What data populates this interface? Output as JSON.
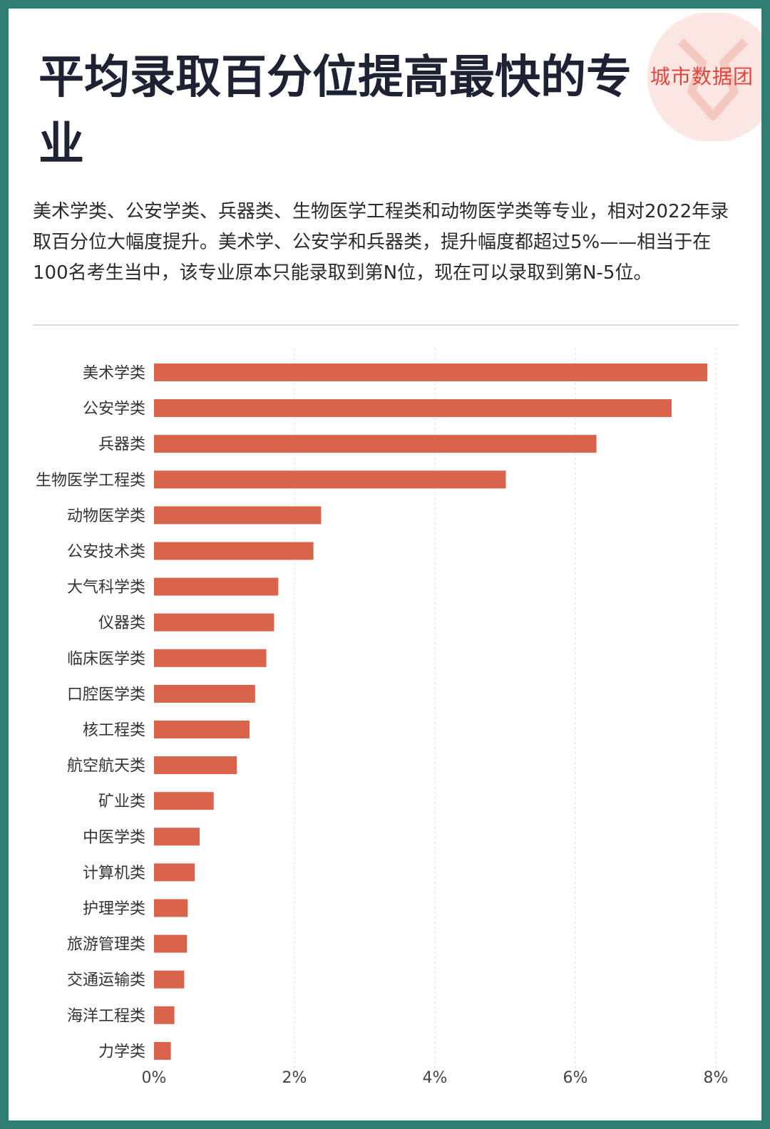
{
  "brand": {
    "name": "城市数据团"
  },
  "header": {
    "title": "平均录取百分位提高最快的专业",
    "description": "美术学类、公安学类、兵器类、生物医学工程类和动物医学类等专业，相对2022年录取百分位大幅度提升。美术学、公安学和兵器类，提升幅度都超过5%——相当于在100名考生当中，该专业原本只能录取到第N位，现在可以录取到第N-5位。"
  },
  "colors": {
    "bar": "#d8644c",
    "frame": "#2f7d72",
    "brand": "#e0463d",
    "grid": "#d9d9d9"
  },
  "chart_data": {
    "type": "bar",
    "orientation": "horizontal",
    "categories": [
      "美术学类",
      "公安学类",
      "兵器类",
      "生物医学工程类",
      "动物医学类",
      "公安技术类",
      "大气科学类",
      "仪器类",
      "临床医学类",
      "口腔医学类",
      "核工程类",
      "航空航天类",
      "矿业类",
      "中医学类",
      "计算机类",
      "护理学类",
      "旅游管理类",
      "交通运输类",
      "海洋工程类",
      "力学类"
    ],
    "values": [
      7.88,
      7.37,
      6.3,
      5.01,
      2.38,
      2.27,
      1.77,
      1.71,
      1.6,
      1.44,
      1.36,
      1.18,
      0.85,
      0.65,
      0.58,
      0.48,
      0.47,
      0.43,
      0.29,
      0.24
    ],
    "xlim": [
      0,
      8
    ],
    "xticks": [
      0,
      2,
      4,
      6,
      8
    ],
    "xtick_labels": [
      "0%",
      "2%",
      "4%",
      "6%",
      "8%"
    ],
    "grid": true,
    "grid_style": "dashed"
  }
}
